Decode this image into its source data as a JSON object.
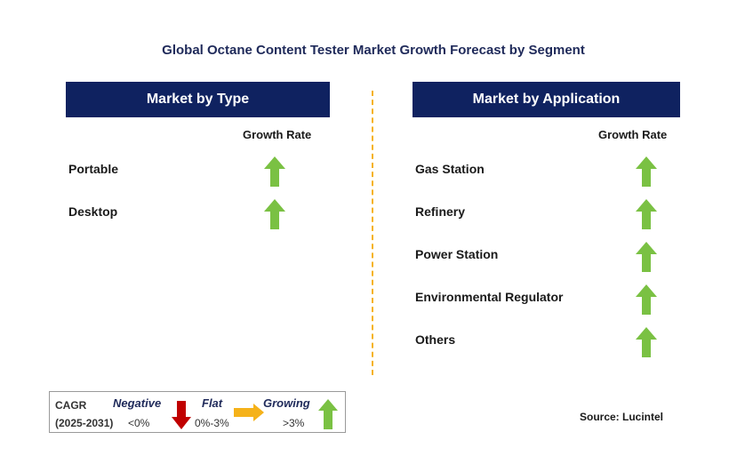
{
  "title": "Global Octane Content Tester Market Growth Forecast by Segment",
  "colors": {
    "header_bg": "#0f2260",
    "growing": "#7ac143",
    "negative": "#c00000",
    "flat": "#f5b21a",
    "divider": "#f5b21a"
  },
  "chart_data": {
    "type": "table",
    "panels": [
      {
        "header": "Market by Type",
        "column_label": "Growth Rate",
        "rows": [
          {
            "label": "Portable",
            "trend": "growing"
          },
          {
            "label": "Desktop",
            "trend": "growing"
          }
        ]
      },
      {
        "header": "Market by Application",
        "column_label": "Growth Rate",
        "rows": [
          {
            "label": "Gas Station",
            "trend": "growing"
          },
          {
            "label": "Refinery",
            "trend": "growing"
          },
          {
            "label": "Power Station",
            "trend": "growing"
          },
          {
            "label": "Environmental Regulator",
            "trend": "growing"
          },
          {
            "label": "Others",
            "trend": "growing"
          }
        ]
      }
    ]
  },
  "legend": {
    "cagr_label": "CAGR",
    "period": "(2025-2031)",
    "negative": {
      "label": "Negative",
      "range": "<0%",
      "icon": "down-arrow-icon"
    },
    "flat": {
      "label": "Flat",
      "range": "0%-3%",
      "icon": "right-arrow-icon"
    },
    "growing": {
      "label": "Growing",
      "range": ">3%",
      "icon": "up-arrow-icon"
    }
  },
  "source": "Source: Lucintel"
}
